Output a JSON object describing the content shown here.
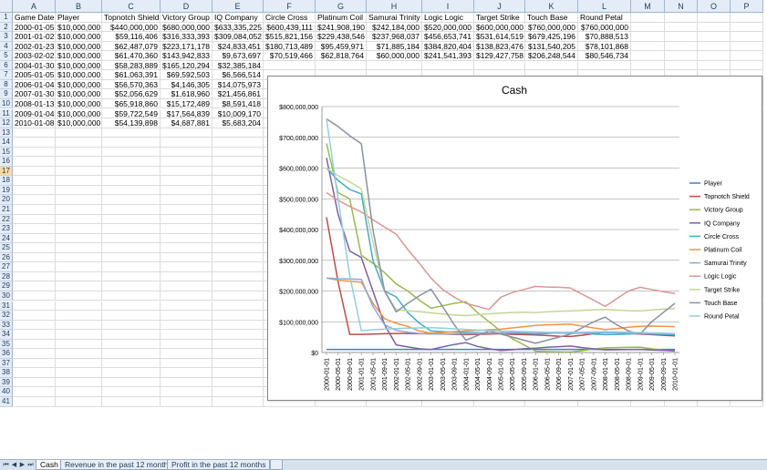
{
  "sheet": {
    "columns": [
      "A",
      "B",
      "C",
      "D",
      "E",
      "F",
      "G",
      "H",
      "I",
      "J",
      "K",
      "L",
      "M",
      "N",
      "O",
      "P"
    ],
    "row_numbers": [
      "1",
      "2",
      "3",
      "4",
      "5",
      "6",
      "7",
      "8",
      "9",
      "10",
      "11",
      "12",
      "13",
      "14",
      "15",
      "16",
      "17",
      "18",
      "19",
      "20",
      "21",
      "22",
      "23",
      "24",
      "25",
      "26",
      "27",
      "28",
      "29",
      "30",
      "31",
      "32",
      "33",
      "34",
      "35",
      "36",
      "37",
      "38",
      "39",
      "40",
      "41"
    ],
    "selected_row": "17",
    "headers": [
      "Game Date",
      "Player",
      "Topnotch Shield",
      "Victory Group",
      "IQ Company",
      "Circle Cross",
      "Platinum Coil",
      "Samurai Trinity",
      "Logic Logic",
      "Target Strike",
      "Touch Base",
      "Round Petal"
    ],
    "rows": [
      [
        "2000-01-05",
        "$10,000,000",
        "$440,000,000",
        "$680,000,000",
        "$633,335,225",
        "$600,439,111",
        "$241,908,190",
        "$242,184,000",
        "$520,000,000",
        "$600,000,000",
        "$760,000,000",
        "$760,000,000"
      ],
      [
        "2001-01-02",
        "$10,000,000",
        "$59,116,406",
        "$316,333,393",
        "$309,084,052",
        "$515,821,156",
        "$229,438,546",
        "$237,968,037",
        "$456,653,741",
        "$531,614,519",
        "$679,425,196",
        "$70,888,513"
      ],
      [
        "2002-01-23",
        "$10,000,000",
        "$62,487,079",
        "$223,171,178",
        "$24,833,451",
        "$180,713,489",
        "$95,459,971",
        "$71,885,184",
        "$384,820,404",
        "$138,823,476",
        "$131,540,205",
        "$78,101,868"
      ],
      [
        "2003-02-02",
        "$10,000,000",
        "$61,470,360",
        "$143,942,833",
        "$9,673,697",
        "$70,519,466",
        "$62,818,764",
        "$60,000,000",
        "$241,541,393",
        "$129,427,758",
        "$206,248,544",
        "$80,546,734"
      ],
      [
        "2004-01-30",
        "$10,000,000",
        "$58,283,889",
        "$165,120,294",
        "$32,385,184",
        "",
        "",
        "",
        "",
        "",
        "",
        ""
      ],
      [
        "2005-01-05",
        "$10,000,000",
        "$61,063,391",
        "$69,592,503",
        "$6,566,514",
        "",
        "",
        "",
        "",
        "",
        "",
        ""
      ],
      [
        "2006-01-04",
        "$10,000,000",
        "$56,570,363",
        "$4,146,305",
        "$14,075,973",
        "",
        "",
        "",
        "",
        "",
        "",
        ""
      ],
      [
        "2007-01-30",
        "$10,000,000",
        "$52,056,629",
        "$1,618,960",
        "$21,456,861",
        "",
        "",
        "",
        "",
        "",
        "",
        ""
      ],
      [
        "2008-01-13",
        "$10,000,000",
        "$65,918,860",
        "$15,172,489",
        "$8,591,418",
        "",
        "",
        "",
        "",
        "",
        "",
        ""
      ],
      [
        "2009-01-04",
        "$10,000,000",
        "$59,722,549",
        "$17,564,839",
        "$10,009,170",
        "",
        "",
        "",
        "",
        "",
        "",
        ""
      ],
      [
        "2010-01-08",
        "$10,000,000",
        "$54,139,898",
        "$4,687,881",
        "$5,683,204",
        "",
        "",
        "",
        "",
        "",
        "",
        ""
      ]
    ]
  },
  "chart_data": {
    "type": "line",
    "title": "Cash",
    "yticks": [
      "$800,000,000",
      "$700,000,000",
      "$600,000,000",
      "$500,000,000",
      "$400,000,000",
      "$300,000,000",
      "$200,000,000",
      "$100,000,000",
      "$0"
    ],
    "ylim": [
      0,
      800000000
    ],
    "grid": true,
    "legend": "right",
    "x": [
      "2000-01-01",
      "2000-05-01",
      "2000-09-01",
      "2001-01-01",
      "2001-05-01",
      "2001-09-01",
      "2002-01-01",
      "2002-05-01",
      "2002-09-01",
      "2003-01-01",
      "2003-05-01",
      "2003-09-01",
      "2004-01-01",
      "2004-05-01",
      "2004-09-01",
      "2005-01-01",
      "2005-05-01",
      "2005-09-01",
      "2006-01-01",
      "2006-05-01",
      "2006-09-01",
      "2007-01-01",
      "2007-05-01",
      "2007-09-01",
      "2008-01-01",
      "2008-05-01",
      "2008-09-01",
      "2009-01-01",
      "2009-05-01",
      "2009-09-01",
      "2010-01-01"
    ],
    "series": [
      {
        "name": "Player",
        "color": "#4a7ebb",
        "values": [
          10000000,
          10000000,
          10000000,
          10000000,
          10000000,
          10000000,
          10000000,
          10000000,
          10000000,
          10000000,
          10000000,
          10000000,
          10000000,
          10000000,
          10000000,
          10000000,
          10000000,
          10000000,
          10000000,
          10000000,
          10000000,
          10000000,
          10000000,
          10000000,
          10000000,
          10000000,
          10000000,
          10000000,
          10000000,
          10000000,
          10000000
        ]
      },
      {
        "name": "Topnotch Shield",
        "color": "#be4b48",
        "values": [
          440000000,
          230000000,
          59000000,
          59000000,
          60000000,
          61000000,
          62000000,
          62000000,
          61000000,
          61000000,
          60000000,
          59000000,
          58000000,
          59000000,
          60000000,
          61000000,
          59000000,
          58000000,
          57000000,
          55000000,
          53000000,
          52000000,
          56000000,
          61000000,
          66000000,
          64000000,
          62000000,
          60000000,
          58000000,
          56000000,
          54000000
        ]
      },
      {
        "name": "Victory Group",
        "color": "#98b954",
        "values": [
          680000000,
          520000000,
          500000000,
          316000000,
          290000000,
          260000000,
          223000000,
          200000000,
          170000000,
          144000000,
          152000000,
          160000000,
          165000000,
          130000000,
          100000000,
          70000000,
          45000000,
          25000000,
          4000000,
          3000000,
          2000000,
          1600000,
          6000000,
          11000000,
          15000000,
          16000000,
          17000000,
          17500000,
          12000000,
          8000000,
          4700000
        ]
      },
      {
        "name": "IQ Company",
        "color": "#7d60a0",
        "values": [
          633000000,
          450000000,
          330000000,
          309000000,
          200000000,
          90000000,
          25000000,
          18000000,
          12000000,
          9700000,
          18000000,
          26000000,
          32000000,
          20000000,
          12000000,
          6600000,
          9000000,
          12000000,
          14000000,
          17000000,
          19000000,
          21000000,
          16000000,
          12000000,
          8600000,
          9000000,
          9500000,
          10000000,
          8000000,
          7000000,
          5700000
        ]
      },
      {
        "name": "Circle Cross",
        "color": "#46aac5",
        "values": [
          600000000,
          560000000,
          530000000,
          516000000,
          300000000,
          200000000,
          181000000,
          130000000,
          95000000,
          70000000,
          68000000,
          66000000,
          65000000,
          64000000,
          63000000,
          62000000,
          63000000,
          62000000,
          60000000,
          62000000,
          64000000,
          66000000,
          63000000,
          60000000,
          58000000,
          59000000,
          60000000,
          62000000,
          60000000,
          59000000,
          58000000
        ]
      },
      {
        "name": "Platinum Coil",
        "color": "#f69240",
        "values": [
          242000000,
          235000000,
          232000000,
          229000000,
          160000000,
          110000000,
          95000000,
          85000000,
          70000000,
          63000000,
          65000000,
          68000000,
          70000000,
          72000000,
          74000000,
          76000000,
          80000000,
          84000000,
          88000000,
          90000000,
          91000000,
          92000000,
          86000000,
          80000000,
          75000000,
          78000000,
          82000000,
          85000000,
          86000000,
          85000000,
          84000000
        ]
      },
      {
        "name": "Samurai Trinity",
        "color": "#8ea6d7",
        "values": [
          242000000,
          240000000,
          239000000,
          238000000,
          150000000,
          90000000,
          72000000,
          66000000,
          62000000,
          60000000,
          60000000,
          60000000,
          61000000,
          62000000,
          63000000,
          64000000,
          65000000,
          66000000,
          65000000,
          64000000,
          63000000,
          62000000,
          63000000,
          64000000,
          65000000,
          64000000,
          63000000,
          62000000,
          62000000,
          61000000,
          61000000
        ]
      },
      {
        "name": "Logic Logic",
        "color": "#d99795",
        "values": [
          520000000,
          495000000,
          475000000,
          457000000,
          432000000,
          408000000,
          385000000,
          335000000,
          290000000,
          242000000,
          205000000,
          180000000,
          160000000,
          150000000,
          140000000,
          180000000,
          195000000,
          205000000,
          215000000,
          213000000,
          212000000,
          210000000,
          190000000,
          170000000,
          150000000,
          175000000,
          200000000,
          212000000,
          205000000,
          198000000,
          192000000
        ]
      },
      {
        "name": "Target Strike",
        "color": "#c3d69b",
        "values": [
          600000000,
          575000000,
          555000000,
          532000000,
          360000000,
          200000000,
          139000000,
          136000000,
          133000000,
          129000000,
          125000000,
          122000000,
          120000000,
          123000000,
          126000000,
          128000000,
          130000000,
          131000000,
          130000000,
          132000000,
          134000000,
          135000000,
          137000000,
          139000000,
          140000000,
          138000000,
          136000000,
          135000000,
          138000000,
          141000000,
          143000000
        ]
      },
      {
        "name": "Touch Base",
        "color": "#8c8fa2",
        "values": [
          760000000,
          735000000,
          705000000,
          679000000,
          400000000,
          200000000,
          132000000,
          160000000,
          185000000,
          206000000,
          150000000,
          90000000,
          40000000,
          55000000,
          70000000,
          60000000,
          50000000,
          40000000,
          30000000,
          40000000,
          50000000,
          60000000,
          80000000,
          100000000,
          115000000,
          90000000,
          70000000,
          60000000,
          100000000,
          130000000,
          160000000
        ]
      },
      {
        "name": "Round Petal",
        "color": "#93cddd",
        "values": [
          760000000,
          500000000,
          250000000,
          71000000,
          74000000,
          76000000,
          78000000,
          79000000,
          80000000,
          80500000,
          79000000,
          77000000,
          75000000,
          73000000,
          71000000,
          70000000,
          69000000,
          68000000,
          67000000,
          66000000,
          66000000,
          65000000,
          66000000,
          67000000,
          68000000,
          67000000,
          66000000,
          65000000,
          64000000,
          63000000,
          62000000
        ]
      }
    ]
  },
  "tabs": [
    {
      "label": "Cash",
      "active": true
    },
    {
      "label": "Revenue in the past 12 months",
      "active": false
    },
    {
      "label": "Profit in the past 12 months",
      "active": false
    }
  ],
  "tab_nav": {
    "first": "⏮",
    "prev": "◀",
    "next": "▶",
    "last": "⏭"
  }
}
